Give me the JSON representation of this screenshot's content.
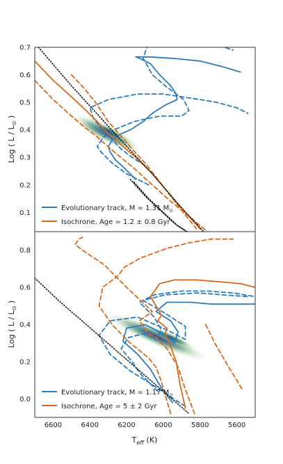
{
  "chart_data": [
    {
      "type": "line",
      "panel": "top",
      "xlim": [
        6700,
        5500
      ],
      "ylim": [
        0.03,
        0.7
      ],
      "x_ticks": [
        6600,
        6400,
        6200,
        6000,
        5800,
        5600
      ],
      "y_ticks": [
        0.1,
        0.2,
        0.3,
        0.4,
        0.5,
        0.6,
        0.7
      ],
      "ylabel": "Log ( L / L",
      "ylabel_sub": "⊙",
      "ylabel_close": " )",
      "legend_position": "lower-left",
      "colors": {
        "track": "#2b7bba",
        "isochrone": "#d8691c",
        "density": "#2e7d5b",
        "density_core": "#3b3a7a",
        "dotted": "#111111"
      },
      "series": [
        {
          "name": "Evolutionary track, M = 1.31 M",
          "name_sub": "⊙",
          "kind": "track",
          "style": "solid",
          "x": [
            6150,
            6210,
            6260,
            6290,
            6300,
            6280,
            6250,
            6180,
            6110,
            6060,
            5990,
            5940,
            5925,
            5930,
            5960,
            6020,
            6070,
            6130,
            6150,
            6080,
            5950,
            5800,
            5680,
            5580
          ],
          "y": [
            0.22,
            0.26,
            0.29,
            0.32,
            0.34,
            0.36,
            0.38,
            0.4,
            0.43,
            0.46,
            0.49,
            0.505,
            0.51,
            0.53,
            0.56,
            0.6,
            0.64,
            0.66,
            0.665,
            0.665,
            0.66,
            0.65,
            0.63,
            0.61
          ]
        },
        {
          "name": "",
          "kind": "track",
          "style": "dashed",
          "x": [
            6080,
            6200,
            6280,
            6340,
            6360,
            6330,
            6270,
            6160,
            6020,
            5900,
            5860,
            5890,
            5990,
            6060,
            6110,
            6090,
            6020,
            5900,
            5760,
            5620
          ],
          "y": [
            0.2,
            0.24,
            0.28,
            0.32,
            0.34,
            0.37,
            0.4,
            0.43,
            0.45,
            0.45,
            0.47,
            0.51,
            0.56,
            0.6,
            0.66,
            0.7,
            0.73,
            0.74,
            0.72,
            0.69
          ]
        },
        {
          "name": "",
          "kind": "track",
          "style": "dashed",
          "x": [
            6100,
            6170,
            6230,
            6300,
            6380,
            6400,
            6300,
            6140,
            6000,
            5900,
            5800,
            5710,
            5600,
            5540
          ],
          "y": [
            0.27,
            0.3,
            0.33,
            0.38,
            0.44,
            0.48,
            0.51,
            0.53,
            0.53,
            0.52,
            0.51,
            0.5,
            0.48,
            0.46
          ]
        },
        {
          "name": "Isochrone, Age = 1.2 ± 0.8 Gyr",
          "kind": "isochrone",
          "style": "solid",
          "x": [
            6700,
            6600,
            6500,
            6420,
            6360,
            6320,
            6270,
            6220,
            6150,
            6060,
            5970,
            5880,
            5800
          ],
          "y": [
            0.65,
            0.58,
            0.52,
            0.47,
            0.43,
            0.4,
            0.37,
            0.34,
            0.3,
            0.24,
            0.17,
            0.1,
            0.04
          ]
        },
        {
          "name": "",
          "kind": "isochrone",
          "style": "dashed",
          "x": [
            6700,
            6600,
            6500,
            6430,
            6370,
            6320,
            6250,
            6160,
            6060,
            5960,
            5850,
            5760
          ],
          "y": [
            0.58,
            0.51,
            0.45,
            0.41,
            0.38,
            0.35,
            0.31,
            0.26,
            0.2,
            0.14,
            0.08,
            0.03
          ]
        },
        {
          "name": "",
          "kind": "isochrone",
          "style": "dashed",
          "x": [
            6500,
            6430,
            6370,
            6330,
            6300,
            6260,
            6220,
            6170,
            6100,
            6030,
            5950,
            5880,
            5820
          ],
          "y": [
            0.6,
            0.55,
            0.5,
            0.46,
            0.43,
            0.4,
            0.37,
            0.33,
            0.28,
            0.22,
            0.15,
            0.09,
            0.04
          ]
        },
        {
          "name": "",
          "kind": "zams",
          "style": "dotted",
          "x": [
            6680,
            6500,
            6350,
            6200,
            6060,
            5920,
            5780
          ],
          "y": [
            0.7,
            0.56,
            0.45,
            0.34,
            0.24,
            0.13,
            0.03
          ]
        },
        {
          "name": "",
          "kind": "zams",
          "style": "dotted",
          "x": [
            6180,
            6100,
            6020,
            5940,
            5870
          ],
          "y": [
            0.22,
            0.16,
            0.11,
            0.06,
            0.03
          ]
        },
        {
          "name": "",
          "kind": "zams",
          "style": "dotted",
          "x": [
            6160,
            6080,
            6000,
            5920,
            5850
          ],
          "y": [
            0.21,
            0.15,
            0.1,
            0.05,
            0.02
          ]
        }
      ],
      "density": {
        "x0": 6480,
        "y0": 0.445,
        "x1": 6140,
        "y1": 0.33,
        "peak_x": 6300,
        "peak_y": 0.395
      }
    },
    {
      "type": "line",
      "panel": "bottom",
      "xlim": [
        6700,
        5500
      ],
      "ylim": [
        -0.1,
        0.9
      ],
      "x_ticks": [
        6600,
        6400,
        6200,
        6000,
        5800,
        5600
      ],
      "y_ticks": [
        0.0,
        0.2,
        0.4,
        0.6,
        0.8
      ],
      "ylabel": "Log ( L / L",
      "ylabel_sub": "⊙",
      "ylabel_close": " )",
      "xlabel": "T",
      "xlabel_sub": "eff",
      "xlabel_unit": " (K)",
      "legend_position": "lower-left",
      "series": [
        {
          "name": "Evolutionary track, M = 1.17 M",
          "name_sub": "⊙",
          "kind": "track",
          "style": "solid",
          "x": [
            5950,
            5990,
            6030,
            6070,
            6140,
            6220,
            6200,
            6100,
            6000,
            5940,
            5920,
            5960,
            6040,
            5980,
            5850,
            5740,
            5640,
            5500
          ],
          "y": [
            -0.02,
            0.03,
            0.09,
            0.16,
            0.24,
            0.31,
            0.38,
            0.4,
            0.35,
            0.3,
            0.36,
            0.42,
            0.47,
            0.52,
            0.52,
            0.51,
            0.51,
            0.51
          ]
        },
        {
          "name": "",
          "kind": "track",
          "style": "dashed",
          "x": [
            5880,
            5960,
            6050,
            6180,
            6290,
            6350,
            6290,
            6140,
            6000,
            5880,
            5880,
            5990,
            6110,
            5990,
            5810,
            5680,
            5540
          ],
          "y": [
            -0.04,
            0.01,
            0.07,
            0.15,
            0.24,
            0.34,
            0.42,
            0.44,
            0.38,
            0.32,
            0.39,
            0.46,
            0.53,
            0.56,
            0.57,
            0.56,
            0.55
          ]
        },
        {
          "name": "",
          "kind": "track",
          "style": "dashed",
          "x": [
            6030,
            6080,
            6130,
            6170,
            6230,
            6190,
            6110,
            6040,
            6010,
            6050,
            6130,
            6050,
            5900,
            5760,
            5620,
            5500
          ],
          "y": [
            0.04,
            0.09,
            0.14,
            0.2,
            0.27,
            0.33,
            0.35,
            0.32,
            0.37,
            0.44,
            0.52,
            0.56,
            0.58,
            0.58,
            0.57,
            0.55
          ]
        },
        {
          "name": "Isochrone, Age = 5 ± 2 Gyr",
          "kind": "isochrone",
          "style": "solid",
          "x": [
            5880,
            5910,
            5930,
            5960,
            5990,
            5980,
            6030,
            6010,
            6070,
            6020,
            5940,
            5820,
            5690,
            5580,
            5500
          ],
          "y": [
            -0.05,
            0.08,
            0.2,
            0.28,
            0.35,
            0.38,
            0.42,
            0.45,
            0.55,
            0.62,
            0.64,
            0.64,
            0.63,
            0.62,
            0.6
          ]
        },
        {
          "name": "",
          "kind": "isochrone",
          "style": "dashed",
          "x": [
            5830,
            5880,
            5920,
            5980,
            6040,
            6080,
            6130,
            6060,
            6200,
            6320,
            6440,
            6480,
            6460,
            6440
          ],
          "y": [
            -0.08,
            0.05,
            0.17,
            0.27,
            0.33,
            0.35,
            0.42,
            0.47,
            0.6,
            0.72,
            0.8,
            0.83,
            0.86,
            0.87
          ]
        },
        {
          "name": "",
          "kind": "isochrone",
          "style": "dashed",
          "x": [
            5960,
            5990,
            6010,
            6040,
            6080,
            6180,
            6280,
            6350,
            6330,
            6250,
            6210,
            6120,
            5980,
            5860,
            5740,
            5620
          ],
          "y": [
            -0.08,
            0.02,
            0.09,
            0.17,
            0.22,
            0.3,
            0.4,
            0.5,
            0.6,
            0.66,
            0.71,
            0.76,
            0.81,
            0.84,
            0.86,
            0.86
          ]
        },
        {
          "name": "",
          "kind": "isochrone",
          "style": "dashed",
          "x": [
            5770,
            5720,
            5650,
            5570
          ],
          "y": [
            0.4,
            0.3,
            0.18,
            0.05
          ]
        },
        {
          "name": "",
          "kind": "zams",
          "style": "dotted",
          "x": [
            6700,
            6560,
            6420,
            6280,
            6140,
            6000,
            5860
          ],
          "y": [
            0.65,
            0.52,
            0.4,
            0.28,
            0.16,
            0.04,
            -0.08
          ]
        }
      ],
      "density": {
        "x0": 6300,
        "y0": 0.45,
        "x1": 5780,
        "y1": 0.22,
        "peak_x": 5960,
        "peak_y": 0.33
      }
    }
  ]
}
